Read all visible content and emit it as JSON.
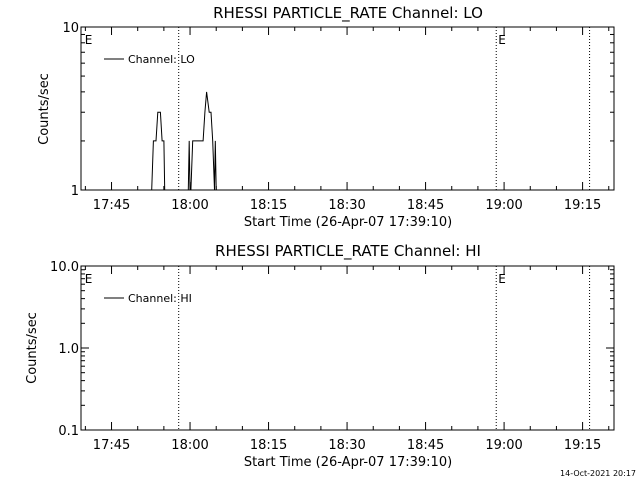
{
  "footer": {
    "timestamp": "14-Oct-2021 20:17"
  },
  "chart_data": [
    {
      "type": "line",
      "title": "RHESSI PARTICLE_RATE Channel: LO",
      "xlabel": "Start Time (26-Apr-07 17:39:10)",
      "ylabel": "Counts/sec",
      "yscale": "log",
      "xlim": [
        "17:39:10",
        "19:21:00"
      ],
      "ylim": [
        1,
        10
      ],
      "x_ticks": [
        "17:45",
        "18:00",
        "18:15",
        "18:30",
        "18:45",
        "19:00",
        "19:15"
      ],
      "y_ticks": [
        "1",
        "10"
      ],
      "legend": {
        "label": "Channel: LO",
        "placement": "top-left"
      },
      "markers": [
        {
          "time": "17:39:30",
          "label": "E",
          "line": false
        },
        {
          "time": "17:57:50",
          "label": "",
          "line": true
        },
        {
          "time": "18:58:30",
          "label": "E",
          "line": true
        },
        {
          "time": "19:16:20",
          "label": "",
          "line": true
        }
      ],
      "series": [
        {
          "name": "Channel: LO",
          "color": "#000000",
          "segments": [
            [
              [
                "17:52:40",
                1
              ],
              [
                "17:53:00",
                2
              ],
              [
                "17:53:30",
                2
              ],
              [
                "17:53:50",
                3
              ],
              [
                "17:54:20",
                3
              ],
              [
                "17:54:40",
                2
              ],
              [
                "17:55:00",
                2
              ],
              [
                "17:55:10",
                1
              ]
            ],
            [
              [
                "17:59:40",
                1
              ],
              [
                "17:59:50",
                2
              ],
              [
                "18:00:00",
                1
              ],
              [
                "18:00:10",
                1
              ],
              [
                "18:00:30",
                2
              ],
              [
                "18:02:30",
                2
              ],
              [
                "18:02:50",
                3
              ],
              [
                "18:03:10",
                4
              ],
              [
                "18:03:40",
                3
              ],
              [
                "18:04:00",
                3
              ],
              [
                "18:04:20",
                2
              ],
              [
                "18:04:40",
                1
              ],
              [
                "18:04:50",
                2
              ],
              [
                "18:05:00",
                1
              ]
            ]
          ]
        }
      ]
    },
    {
      "type": "line",
      "title": "RHESSI PARTICLE_RATE Channel: HI",
      "xlabel": "Start Time (26-Apr-07 17:39:10)",
      "ylabel": "Counts/sec",
      "yscale": "log",
      "xlim": [
        "17:39:10",
        "19:21:00"
      ],
      "ylim": [
        0.1,
        10
      ],
      "x_ticks": [
        "17:45",
        "18:00",
        "18:15",
        "18:30",
        "18:45",
        "19:00",
        "19:15"
      ],
      "y_ticks": [
        "0.1",
        "1.0",
        "10.0"
      ],
      "legend": {
        "label": "Channel: HI",
        "placement": "top-left"
      },
      "markers": [
        {
          "time": "17:39:30",
          "label": "E",
          "line": false
        },
        {
          "time": "17:57:50",
          "label": "",
          "line": true
        },
        {
          "time": "18:58:30",
          "label": "E",
          "line": true
        },
        {
          "time": "19:16:20",
          "label": "",
          "line": true
        }
      ],
      "series": [
        {
          "name": "Channel: HI",
          "color": "#000000",
          "segments": []
        }
      ]
    }
  ]
}
